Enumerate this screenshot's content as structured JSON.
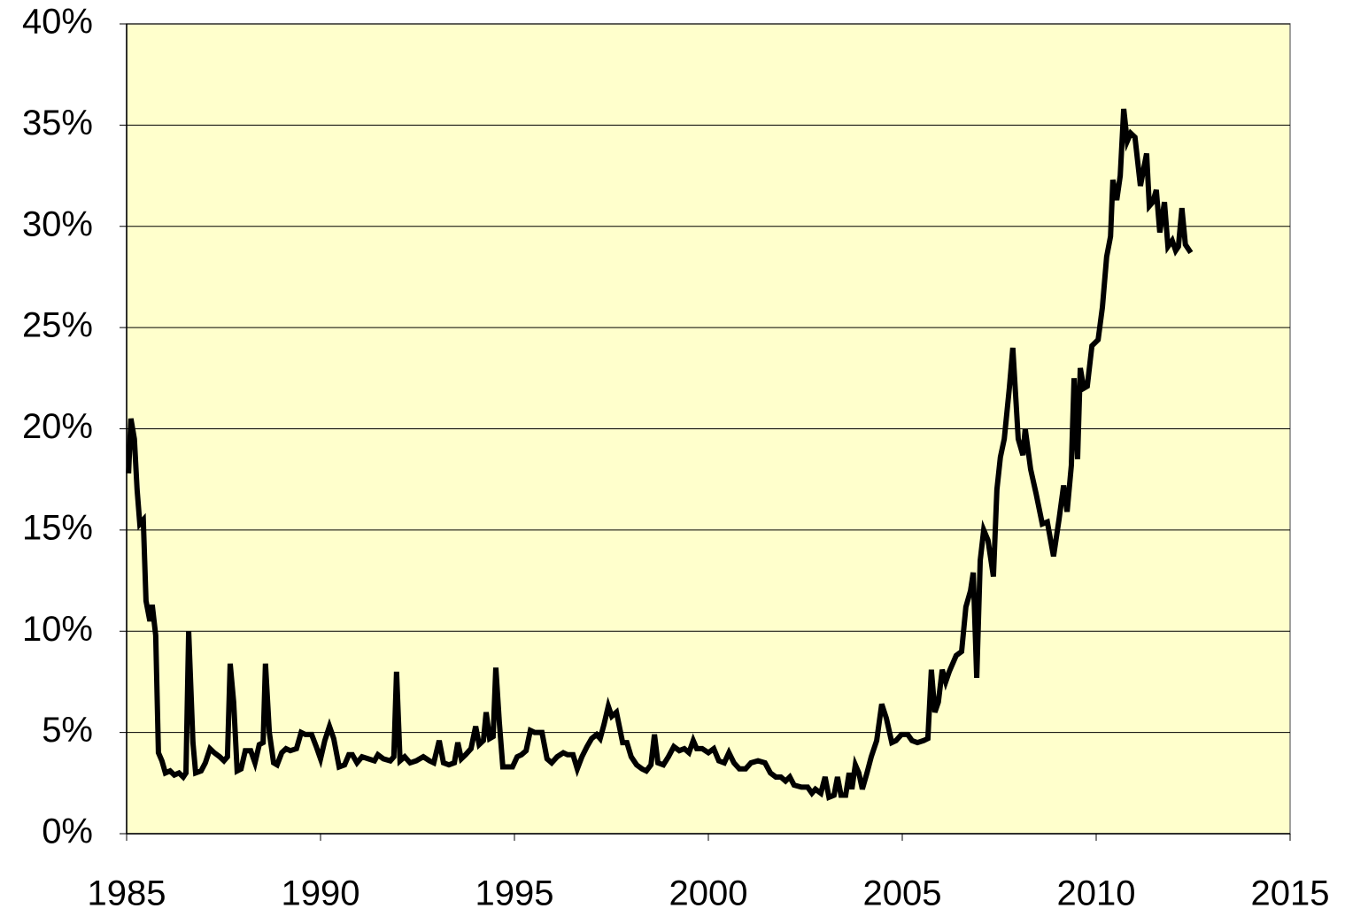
{
  "chart_data": {
    "type": "line",
    "x": [
      1985.05,
      1985.11,
      1985.2,
      1985.27,
      1985.34,
      1985.43,
      1985.5,
      1985.6,
      1985.66,
      1985.75,
      1985.82,
      1985.91,
      1986.0,
      1986.12,
      1986.23,
      1986.35,
      1986.46,
      1986.53,
      1986.6,
      1986.71,
      1986.78,
      1986.92,
      1987.03,
      1987.15,
      1987.26,
      1987.4,
      1987.51,
      1987.6,
      1987.67,
      1987.76,
      1987.85,
      1987.95,
      1988.06,
      1988.2,
      1988.31,
      1988.42,
      1988.52,
      1988.58,
      1988.68,
      1988.79,
      1988.88,
      1989.0,
      1989.11,
      1989.22,
      1989.38,
      1989.5,
      1989.61,
      1989.77,
      1989.89,
      1990.0,
      1990.11,
      1990.23,
      1990.34,
      1990.48,
      1990.62,
      1990.73,
      1990.82,
      1990.94,
      1991.07,
      1991.23,
      1991.39,
      1991.48,
      1991.62,
      1991.8,
      1991.89,
      1991.96,
      1992.05,
      1992.17,
      1992.31,
      1992.47,
      1992.65,
      1992.81,
      1992.92,
      1993.06,
      1993.17,
      1993.31,
      1993.45,
      1993.54,
      1993.63,
      1993.74,
      1993.88,
      1994.0,
      1994.09,
      1994.2,
      1994.27,
      1994.36,
      1994.45,
      1994.52,
      1994.61,
      1994.7,
      1994.82,
      1994.95,
      1995.07,
      1995.18,
      1995.3,
      1995.41,
      1995.52,
      1995.71,
      1995.84,
      1995.96,
      1996.1,
      1996.26,
      1996.37,
      1996.51,
      1996.62,
      1996.74,
      1996.87,
      1996.99,
      1997.12,
      1997.21,
      1997.31,
      1997.42,
      1997.51,
      1997.63,
      1997.79,
      1997.9,
      1998.01,
      1998.15,
      1998.29,
      1998.4,
      1998.52,
      1998.61,
      1998.7,
      1998.84,
      1998.97,
      1999.11,
      1999.25,
      1999.38,
      1999.5,
      1999.61,
      1999.7,
      1999.84,
      2000.0,
      2000.14,
      2000.27,
      2000.41,
      2000.53,
      2000.66,
      2000.8,
      2000.96,
      2001.1,
      2001.28,
      2001.46,
      2001.6,
      2001.74,
      2001.87,
      2001.99,
      2002.1,
      2002.21,
      2002.4,
      2002.56,
      2002.67,
      2002.76,
      2002.9,
      2003.01,
      2003.11,
      2003.24,
      2003.33,
      2003.42,
      2003.54,
      2003.63,
      2003.7,
      2003.79,
      2003.88,
      2003.97,
      2004.09,
      2004.2,
      2004.34,
      2004.47,
      2004.59,
      2004.73,
      2004.84,
      2004.98,
      2005.14,
      2005.25,
      2005.39,
      2005.55,
      2005.66,
      2005.75,
      2005.84,
      2005.93,
      2006.03,
      2006.12,
      2006.21,
      2006.39,
      2006.53,
      2006.64,
      2006.76,
      2006.83,
      2006.92,
      2007.01,
      2007.1,
      2007.21,
      2007.35,
      2007.44,
      2007.53,
      2007.63,
      2007.76,
      2007.85,
      2007.99,
      2008.11,
      2008.17,
      2008.31,
      2008.45,
      2008.61,
      2008.74,
      2008.9,
      2009.04,
      2009.16,
      2009.25,
      2009.36,
      2009.43,
      2009.52,
      2009.59,
      2009.68,
      2009.77,
      2009.89,
      2010.05,
      2010.16,
      2010.27,
      2010.37,
      2010.43,
      2010.53,
      2010.62,
      2010.71,
      2010.8,
      2010.89,
      2011.0,
      2011.14,
      2011.3,
      2011.37,
      2011.46,
      2011.55,
      2011.64,
      2011.76,
      2011.85,
      2011.96,
      2012.05,
      2012.12,
      2012.21,
      2012.3,
      2012.44
    ],
    "series": [
      {
        "color": "#000000",
        "values": [
          17.8,
          20.5,
          19.5,
          17,
          15.3,
          15.5,
          11.5,
          10.5,
          11.3,
          9.8,
          4,
          3.6,
          3.0,
          3.1,
          2.9,
          3.0,
          2.8,
          3.0,
          10.0,
          4.5,
          3.0,
          3.1,
          3.5,
          4.2,
          4.0,
          3.8,
          3.6,
          3.8,
          8.4,
          6.5,
          3.1,
          3.2,
          4.1,
          4.1,
          3.5,
          4.4,
          4.5,
          8.4,
          5,
          3.5,
          3.4,
          4.0,
          4.2,
          4.1,
          4.2,
          5.0,
          4.9,
          4.9,
          4.3,
          3.7,
          4.6,
          5.3,
          4.7,
          3.3,
          3.4,
          3.9,
          3.9,
          3.5,
          3.8,
          3.7,
          3.6,
          3.9,
          3.7,
          3.6,
          3.8,
          8.0,
          3.6,
          3.8,
          3.5,
          3.6,
          3.8,
          3.6,
          3.5,
          4.6,
          3.5,
          3.4,
          3.5,
          4.5,
          3.7,
          3.9,
          4.2,
          5.3,
          4.4,
          4.6,
          6.0,
          4.7,
          4.8,
          8.2,
          5.5,
          3.3,
          3.3,
          3.3,
          3.8,
          3.9,
          4.1,
          5.1,
          5.0,
          5.0,
          3.7,
          3.5,
          3.8,
          4.0,
          3.9,
          3.9,
          3.2,
          3.8,
          4.3,
          4.7,
          4.9,
          4.7,
          5.4,
          6.3,
          5.8,
          6.0,
          4.5,
          4.5,
          3.8,
          3.4,
          3.2,
          3.1,
          3.4,
          4.9,
          3.5,
          3.4,
          3.8,
          4.3,
          4.1,
          4.2,
          4.0,
          4.6,
          4.2,
          4.2,
          4.0,
          4.2,
          3.6,
          3.5,
          4.0,
          3.5,
          3.2,
          3.2,
          3.5,
          3.6,
          3.5,
          3.0,
          2.8,
          2.8,
          2.6,
          2.8,
          2.4,
          2.3,
          2.3,
          2.0,
          2.2,
          2.0,
          2.8,
          1.8,
          1.9,
          2.8,
          1.9,
          1.9,
          3.0,
          2.2,
          3.4,
          3.0,
          2.2,
          3.0,
          3.8,
          4.6,
          6.4,
          5.7,
          4.5,
          4.6,
          4.9,
          4.9,
          4.6,
          4.5,
          4.6,
          4.7,
          8.1,
          6.0,
          6.5,
          8.1,
          7.5,
          8.0,
          8.8,
          9.0,
          11.2,
          12,
          12.9,
          7.7,
          13.5,
          15,
          14.5,
          12.7,
          17,
          18.6,
          19.5,
          22,
          24.0,
          19.5,
          18.7,
          20,
          18,
          16.8,
          15.3,
          15.4,
          13.7,
          15.5,
          17.2,
          15.9,
          18.2,
          22.5,
          18.5,
          23,
          22,
          22.1,
          24.1,
          24.4,
          26,
          28.5,
          29.5,
          32.3,
          31.3,
          32.5,
          35.8,
          34.2,
          34.6,
          34.4,
          32,
          33.6,
          31,
          31.2,
          31.8,
          29.7,
          31.2,
          29.0,
          29.3,
          28.8,
          29.0,
          30.9,
          29.1,
          28.7
        ]
      }
    ],
    "xlim": [
      1985,
      2015
    ],
    "xticks": [
      1985,
      1990,
      1995,
      2000,
      2005,
      2010,
      2015
    ],
    "ylim": [
      0,
      40
    ],
    "yticks": [
      {
        "value": 0,
        "label": "0%"
      },
      {
        "value": 5,
        "label": "5%"
      },
      {
        "value": 10,
        "label": "10%"
      },
      {
        "value": 15,
        "label": "15%"
      },
      {
        "value": 20,
        "label": "20%"
      },
      {
        "value": 25,
        "label": "25%"
      },
      {
        "value": 30,
        "label": "30%"
      },
      {
        "value": 35,
        "label": "35%"
      },
      {
        "value": 40,
        "label": "40%"
      }
    ],
    "grid": true,
    "plot_background": "#ffffcc"
  }
}
